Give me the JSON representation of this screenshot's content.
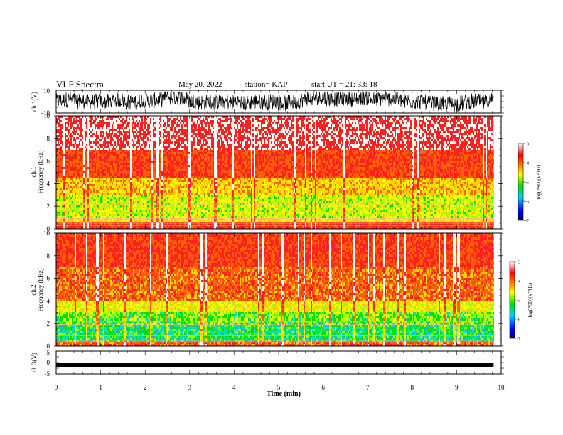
{
  "header": {
    "title": "VLF Spectra",
    "date": "May 20, 2022",
    "station": "station= KAP",
    "start": "start  UT  =   21: 33: 18"
  },
  "colors": {
    "spectrogram_low": "#0000d0",
    "spectrogram_mid_low": "#00d0ff",
    "spectrogram_mid": "#00e000",
    "spectrogram_mid_high": "#ffe000",
    "spectrogram_high": "#ff0000",
    "spectrogram_max": "#ffffff",
    "trace": "#000000"
  },
  "chart_data": [
    {
      "type": "line",
      "name": "waveform-ch1",
      "ylabel": "ch.1(V)",
      "ylim": [
        -10,
        10
      ],
      "yticks": [
        "10",
        "-10"
      ],
      "xlim": [
        0,
        10
      ],
      "description_values": "dense noisy waveform, amplitude mostly between -5 and 9 V"
    },
    {
      "type": "heatmap",
      "name": "spectrogram-ch1",
      "ylabel": "ch.1\nFrequency (kHz)",
      "ylabel_line1": "ch.1",
      "ylabel_line2": "Frequency  (kHz)",
      "ylim": [
        0,
        10
      ],
      "yticks": [
        "0",
        "2",
        "4",
        "6",
        "8",
        "10"
      ],
      "xlim": [
        0,
        9.83
      ],
      "colorbar": {
        "label": "log(PSD)(V²/Hz)",
        "range": [
          -7,
          -3
        ],
        "ticks": [
          "-3",
          "-4",
          "-5",
          "-6",
          "-7"
        ]
      }
    },
    {
      "type": "heatmap",
      "name": "spectrogram-ch2",
      "ylabel_line1": "ch.2",
      "ylabel_line2": "Frequency  (kHz)",
      "ylim": [
        0,
        10
      ],
      "yticks": [
        "0",
        "2",
        "4",
        "6",
        "8",
        "10"
      ],
      "xlim": [
        0,
        9.83
      ],
      "colorbar": {
        "label": "log(PSD)(V²/Hz)",
        "range": [
          -7,
          -3
        ],
        "ticks": [
          "-3",
          "-4",
          "-5",
          "-6",
          "-7"
        ]
      }
    },
    {
      "type": "line",
      "name": "waveform-ch3",
      "ylabel": "ch.3(V)",
      "ylim": [
        -5,
        5
      ],
      "yticks": [
        "5",
        "0",
        "-5"
      ],
      "xlim": [
        0,
        10
      ],
      "xticks": [
        "0",
        "1",
        "2",
        "3",
        "4",
        "5",
        "6",
        "7",
        "8",
        "9",
        "10"
      ],
      "xlabel": "Time  (min)",
      "level_value": -1.1
    }
  ]
}
